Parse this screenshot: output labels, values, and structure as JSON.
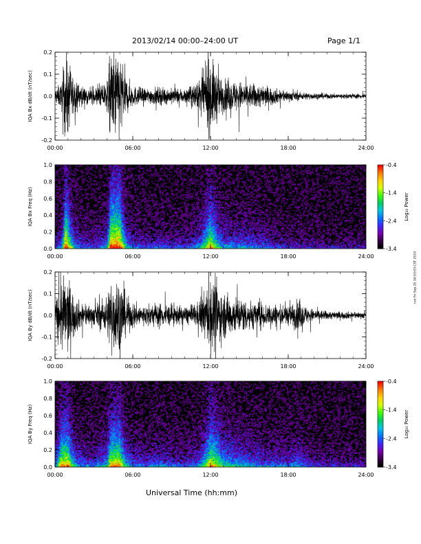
{
  "header": {
    "title": "2013/02/14  00:00–24:00 UT",
    "page": "Page 1/1"
  },
  "footer": {
    "xlabel": "Universal Time (hh:mm)"
  },
  "side_note": "run Fri Sep 20 14:53:03 CST 2019",
  "colorbar": {
    "label": "Log₁₀ Power",
    "ticks": [
      "-0.4",
      "-1.4",
      "-2.4",
      "-3.4"
    ],
    "range": [
      -3.4,
      -0.4
    ],
    "palette": [
      "#000000",
      "#3a004a",
      "#7800b0",
      "#3b2bff",
      "#0077ff",
      "#00c8e0",
      "#00d060",
      "#3cff00",
      "#d8ff00",
      "#ffd000",
      "#ff7a00",
      "#ff0000"
    ]
  },
  "chart_data": [
    {
      "type": "line",
      "name": "bx-timeseries",
      "ylabel": "IQA Bx dB/dt (nT/sec)",
      "ylim": [
        -0.2,
        0.2
      ],
      "yticks": [
        "0.2",
        "0.1",
        "0.0",
        "-0.1",
        "-0.2"
      ],
      "xlim": [
        "00:00",
        "24:00"
      ],
      "xticks": [
        "00:00",
        "06:00",
        "12:00",
        "18:00",
        "24:00"
      ],
      "activity_hours": [
        0,
        0.5,
        0.8,
        1.0,
        1.5,
        2.0,
        3.0,
        4.0,
        4.3,
        5.0,
        5.5,
        6.0,
        7.0,
        8.0,
        9.0,
        10.0,
        11.0,
        11.5,
        12.0,
        12.5,
        13.0,
        14.0,
        15.0,
        16.0,
        17.0,
        18.0,
        19.0,
        20.0,
        21.0,
        22.0,
        24.0
      ],
      "activity_amplitude": [
        0.06,
        0.1,
        0.35,
        0.3,
        0.12,
        0.08,
        0.06,
        0.12,
        0.35,
        0.35,
        0.15,
        0.08,
        0.06,
        0.07,
        0.06,
        0.06,
        0.1,
        0.2,
        0.3,
        0.2,
        0.12,
        0.12,
        0.1,
        0.09,
        0.06,
        0.04,
        0.03,
        0.025,
        0.02,
        0.02,
        0.02
      ]
    },
    {
      "type": "heatmap",
      "name": "bx-spectrogram",
      "ylabel": "IQA Bx Freq (Hz)",
      "ylim": [
        0.0,
        1.0
      ],
      "yticks": [
        "1.0",
        "0.8",
        "0.6",
        "0.4",
        "0.2",
        "0.0"
      ],
      "xlim": [
        "00:00",
        "24:00"
      ],
      "xticks": [
        "00:00",
        "06:00",
        "12:00",
        "18:00",
        "24:00"
      ],
      "zlim": [
        -3.4,
        -0.4
      ]
    },
    {
      "type": "line",
      "name": "by-timeseries",
      "ylabel": "IQA By dB/dt (nT/sec)",
      "ylim": [
        -0.2,
        0.2
      ],
      "yticks": [
        "0.2",
        "0.1",
        "0.0",
        "-0.1",
        "-0.2"
      ],
      "xlim": [
        "00:00",
        "24:00"
      ],
      "xticks": [
        "00:00",
        "06:00",
        "12:00",
        "18:00",
        "24:00"
      ],
      "activity_hours": [
        0,
        0.5,
        1.0,
        1.5,
        2.0,
        3.0,
        4.0,
        4.3,
        5.0,
        5.5,
        6.0,
        7.0,
        8.0,
        9.0,
        10.0,
        11.0,
        11.5,
        12.0,
        12.5,
        13.0,
        14.0,
        15.0,
        16.0,
        17.0,
        18.0,
        18.8,
        19.5,
        20.0,
        21.0,
        22.0,
        24.0
      ],
      "activity_amplitude": [
        0.1,
        0.3,
        0.3,
        0.15,
        0.1,
        0.08,
        0.15,
        0.3,
        0.3,
        0.15,
        0.1,
        0.08,
        0.1,
        0.08,
        0.07,
        0.1,
        0.18,
        0.3,
        0.25,
        0.18,
        0.15,
        0.12,
        0.1,
        0.09,
        0.08,
        0.12,
        0.06,
        0.05,
        0.035,
        0.03,
        0.025
      ]
    },
    {
      "type": "heatmap",
      "name": "by-spectrogram",
      "ylabel": "IQA By Freq (Hz)",
      "ylim": [
        0.0,
        1.0
      ],
      "yticks": [
        "1.0",
        "0.8",
        "0.6",
        "0.4",
        "0.2",
        "0.0"
      ],
      "xlim": [
        "00:00",
        "24:00"
      ],
      "xticks": [
        "00:00",
        "06:00",
        "12:00",
        "18:00",
        "24:00"
      ],
      "zlim": [
        -3.4,
        -0.4
      ]
    }
  ]
}
